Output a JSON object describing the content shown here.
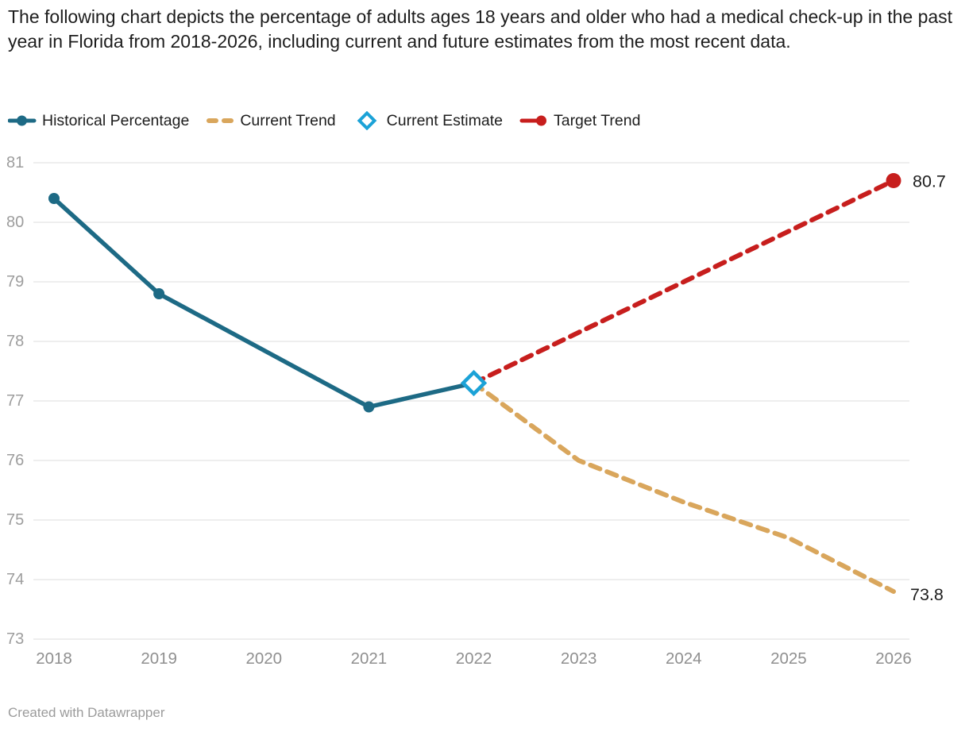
{
  "header": {
    "title": "The following chart depicts the percentage of adults ages 18 years and older who had a medical check-up in the past year in Florida from 2018-2026, including current and future estimates from the most recent data."
  },
  "legend": {
    "items": [
      {
        "id": "historical-percentage",
        "label": "Historical Percentage",
        "marker": "line-dot",
        "color": "#1d6a85"
      },
      {
        "id": "current-trend",
        "label": "Current Trend",
        "marker": "dashes",
        "color": "#d9a65c"
      },
      {
        "id": "current-estimate",
        "label": "Current Estimate",
        "marker": "diamond",
        "color": "#1ba2d7"
      },
      {
        "id": "target-trend",
        "label": "Target Trend",
        "marker": "line-end-dot",
        "color": "#c71e1d"
      }
    ]
  },
  "chart_data": {
    "type": "line",
    "title": "Percentage of adults 18+ with a medical check-up in the past year, Florida 2018-2026",
    "x": [
      2018,
      2019,
      2020,
      2021,
      2022,
      2023,
      2024,
      2025,
      2026
    ],
    "series": [
      {
        "name": "Historical Percentage",
        "style": "solid",
        "color": "#1d6a85",
        "marker": "dot",
        "values": [
          80.4,
          78.8,
          null,
          76.9,
          77.3,
          null,
          null,
          null,
          null
        ]
      },
      {
        "name": "Current Trend",
        "style": "dashed",
        "color": "#d9a65c",
        "end_label": "73.8",
        "values": [
          null,
          null,
          null,
          null,
          77.3,
          76.0,
          75.3,
          74.7,
          73.8
        ]
      },
      {
        "name": "Current Estimate",
        "style": "marker-only",
        "color": "#1ba2d7",
        "marker": "diamond",
        "values": [
          null,
          null,
          null,
          null,
          77.3,
          null,
          null,
          null,
          null
        ]
      },
      {
        "name": "Target Trend",
        "style": "dashed",
        "color": "#c71e1d",
        "end_label": "80.7",
        "end_marker": "dot",
        "values": [
          null,
          null,
          null,
          null,
          77.3,
          78.15,
          79.0,
          79.85,
          80.7
        ]
      }
    ],
    "ylim": [
      73,
      81
    ],
    "yticks": [
      73,
      74,
      75,
      76,
      77,
      78,
      79,
      80,
      81
    ],
    "xlabel": "",
    "ylabel": "",
    "grid": "horizontal",
    "legend_position": "top"
  },
  "footer": {
    "credit": "Created with Datawrapper"
  },
  "colors": {
    "historical": "#1d6a85",
    "current_trend": "#d9a65c",
    "current_estimate": "#1ba2d7",
    "target_trend": "#c71e1d",
    "gridline": "#e8e8e8",
    "axis_text": "#9d9d9d",
    "title_text": "#1d1d1d",
    "value_label": "#1d1d1d"
  }
}
